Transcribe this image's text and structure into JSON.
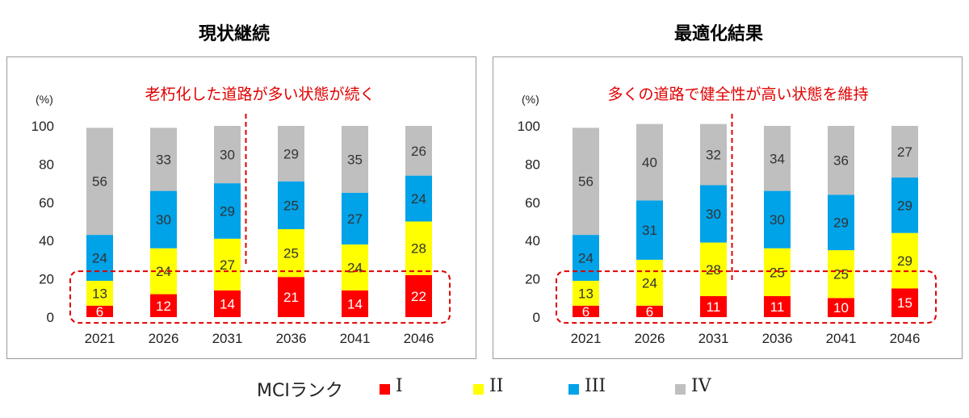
{
  "legend": {
    "title": "MCIランク",
    "items": [
      {
        "label": "I",
        "color": "#ff0000"
      },
      {
        "label": "II",
        "color": "#ffff00"
      },
      {
        "label": "III",
        "color": "#00a2e8"
      },
      {
        "label": "IV",
        "color": "#bfbfbf"
      }
    ]
  },
  "chart_data": [
    {
      "type": "bar",
      "stacked": true,
      "title": "現状継続",
      "subtitle": "老朽化した道路が多い状態が続く",
      "ylabel": "(%)",
      "ylim": [
        0,
        100
      ],
      "yticks": [
        0,
        20,
        40,
        60,
        80,
        100
      ],
      "categories": [
        "2021",
        "2026",
        "2031",
        "2036",
        "2041",
        "2046"
      ],
      "series": [
        {
          "name": "I",
          "color": "#ff0000",
          "values": [
            6,
            12,
            14,
            21,
            14,
            22
          ]
        },
        {
          "name": "II",
          "color": "#ffff00",
          "values": [
            13,
            24,
            27,
            25,
            24,
            28
          ]
        },
        {
          "name": "III",
          "color": "#00a2e8",
          "values": [
            24,
            30,
            29,
            25,
            27,
            24
          ]
        },
        {
          "name": "IV",
          "color": "#bfbfbf",
          "values": [
            56,
            33,
            30,
            29,
            35,
            26
          ]
        }
      ],
      "grid": false
    },
    {
      "type": "bar",
      "stacked": true,
      "title": "最適化結果",
      "subtitle": "多くの道路で健全性が高い状態を維持",
      "ylabel": "(%)",
      "ylim": [
        0,
        100
      ],
      "yticks": [
        0,
        20,
        40,
        60,
        80,
        100
      ],
      "categories": [
        "2021",
        "2026",
        "2031",
        "2036",
        "2041",
        "2046"
      ],
      "series": [
        {
          "name": "I",
          "color": "#ff0000",
          "values": [
            6,
            6,
            11,
            11,
            10,
            15
          ]
        },
        {
          "name": "II",
          "color": "#ffff00",
          "values": [
            13,
            24,
            28,
            25,
            25,
            29
          ]
        },
        {
          "name": "III",
          "color": "#00a2e8",
          "values": [
            24,
            31,
            30,
            30,
            29,
            29
          ]
        },
        {
          "name": "IV",
          "color": "#bfbfbf",
          "values": [
            56,
            40,
            32,
            34,
            36,
            27
          ]
        }
      ],
      "grid": false
    }
  ]
}
